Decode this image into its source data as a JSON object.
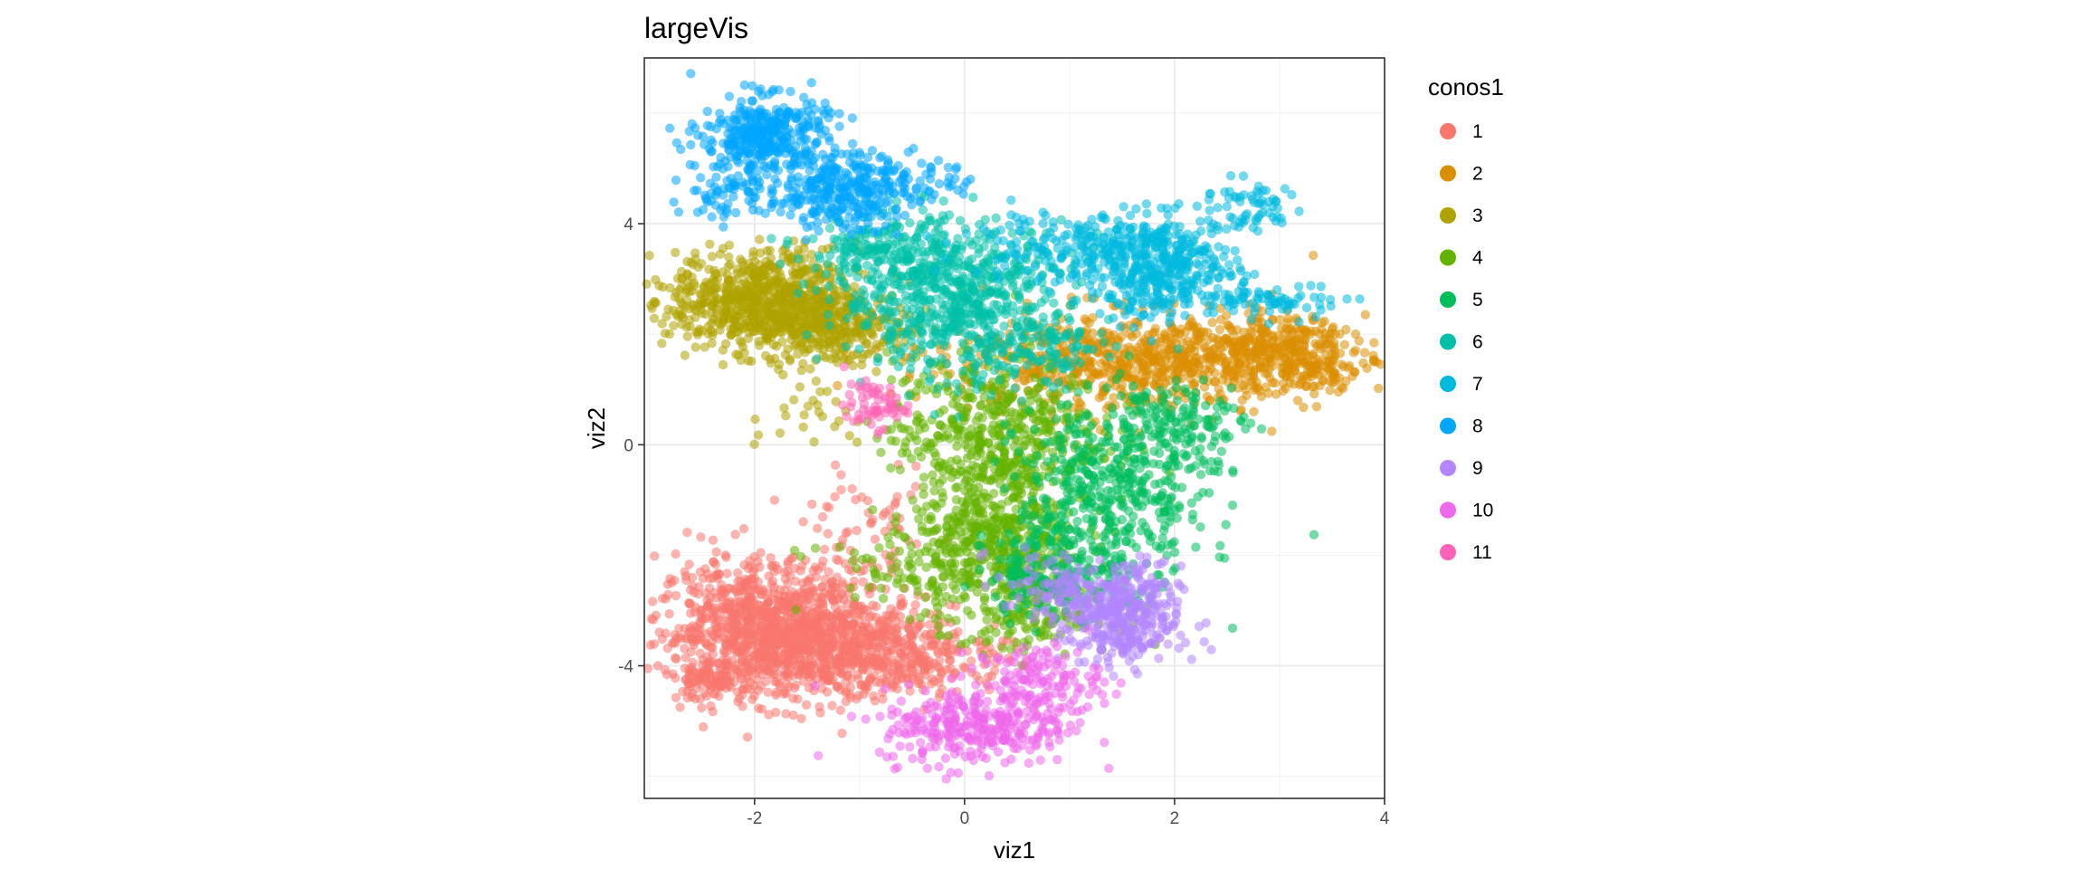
{
  "chart_data": {
    "type": "scatter",
    "title": "largeVis",
    "xlabel": "viz1",
    "ylabel": "viz2",
    "xlim": [
      -3.05,
      4.0
    ],
    "ylim": [
      -6.4,
      7.0
    ],
    "xticks": [
      -2,
      0,
      2,
      4
    ],
    "yticks": [
      -4,
      0,
      4
    ],
    "grid": true,
    "point_opacity": 0.55,
    "legend": {
      "title": "conos1",
      "placement": "right",
      "entries": [
        "1",
        "2",
        "3",
        "4",
        "5",
        "6",
        "7",
        "8",
        "9",
        "10",
        "11"
      ]
    },
    "series": [
      {
        "name": "1",
        "color": "#F8766D",
        "clusters": [
          {
            "cx": -1.9,
            "cy": -3.3,
            "sx": 0.5,
            "sy": 0.6,
            "n": 900
          },
          {
            "cx": -1.2,
            "cy": -3.7,
            "sx": 0.45,
            "sy": 0.45,
            "n": 500
          },
          {
            "cx": -2.45,
            "cy": -4.3,
            "sx": 0.18,
            "sy": 0.15,
            "n": 80
          },
          {
            "cx": -0.3,
            "cy": -3.8,
            "sx": 0.4,
            "sy": 0.35,
            "n": 180
          },
          {
            "cx": -0.9,
            "cy": -1.6,
            "sx": 0.3,
            "sy": 0.5,
            "n": 60
          }
        ]
      },
      {
        "name": "2",
        "color": "#DB8E00",
        "clusters": [
          {
            "cx": 1.6,
            "cy": 1.5,
            "sx": 0.9,
            "sy": 0.45,
            "n": 700
          },
          {
            "cx": 2.9,
            "cy": 1.7,
            "sx": 0.45,
            "sy": 0.3,
            "n": 300
          },
          {
            "cx": 3.4,
            "cy": 1.3,
            "sx": 0.15,
            "sy": 0.15,
            "n": 40
          }
        ]
      },
      {
        "name": "3",
        "color": "#AEA200",
        "clusters": [
          {
            "cx": -1.9,
            "cy": 2.6,
            "sx": 0.45,
            "sy": 0.45,
            "n": 750
          },
          {
            "cx": -1.2,
            "cy": 2.1,
            "sx": 0.35,
            "sy": 0.35,
            "n": 250
          },
          {
            "cx": -1.4,
            "cy": 0.5,
            "sx": 0.3,
            "sy": 0.3,
            "n": 25
          }
        ]
      },
      {
        "name": "4",
        "color": "#64B200",
        "clusters": [
          {
            "cx": 0.3,
            "cy": 0.2,
            "sx": 0.5,
            "sy": 0.7,
            "n": 500
          },
          {
            "cx": 0.3,
            "cy": -1.8,
            "sx": 0.4,
            "sy": 0.7,
            "n": 450
          },
          {
            "cx": 0.7,
            "cy": -3.1,
            "sx": 0.35,
            "sy": 0.3,
            "n": 120
          },
          {
            "cx": -0.4,
            "cy": -2.2,
            "sx": 0.5,
            "sy": 0.4,
            "n": 100
          }
        ]
      },
      {
        "name": "5",
        "color": "#00BD5C",
        "clusters": [
          {
            "cx": 1.4,
            "cy": -0.9,
            "sx": 0.45,
            "sy": 0.8,
            "n": 450
          },
          {
            "cx": 0.9,
            "cy": -2.3,
            "sx": 0.35,
            "sy": 0.4,
            "n": 200
          },
          {
            "cx": 2.0,
            "cy": 0.4,
            "sx": 0.35,
            "sy": 0.4,
            "n": 150
          }
        ]
      },
      {
        "name": "6",
        "color": "#00C1A7",
        "clusters": [
          {
            "cx": -0.1,
            "cy": 2.7,
            "sx": 0.55,
            "sy": 0.65,
            "n": 650
          },
          {
            "cx": -0.8,
            "cy": 3.5,
            "sx": 0.35,
            "sy": 0.3,
            "n": 150
          },
          {
            "cx": 0.6,
            "cy": 1.7,
            "sx": 0.4,
            "sy": 0.4,
            "n": 120
          }
        ]
      },
      {
        "name": "7",
        "color": "#00BADE",
        "clusters": [
          {
            "cx": 1.9,
            "cy": 3.2,
            "sx": 0.35,
            "sy": 0.45,
            "n": 400
          },
          {
            "cx": 1.0,
            "cy": 3.6,
            "sx": 0.5,
            "sy": 0.35,
            "n": 180
          },
          {
            "cx": 2.7,
            "cy": 4.3,
            "sx": 0.25,
            "sy": 0.25,
            "n": 60
          },
          {
            "cx": 3.0,
            "cy": 2.6,
            "sx": 0.3,
            "sy": 0.15,
            "n": 70
          }
        ]
      },
      {
        "name": "8",
        "color": "#00A6FF",
        "clusters": [
          {
            "cx": -1.9,
            "cy": 5.6,
            "sx": 0.3,
            "sy": 0.35,
            "n": 350
          },
          {
            "cx": -1.2,
            "cy": 4.6,
            "sx": 0.35,
            "sy": 0.35,
            "n": 300
          },
          {
            "cx": -2.3,
            "cy": 4.6,
            "sx": 0.2,
            "sy": 0.3,
            "n": 60
          },
          {
            "cx": -0.5,
            "cy": 4.8,
            "sx": 0.3,
            "sy": 0.2,
            "n": 50
          }
        ]
      },
      {
        "name": "9",
        "color": "#B385FF",
        "clusters": [
          {
            "cx": 1.5,
            "cy": -3.1,
            "sx": 0.28,
            "sy": 0.45,
            "n": 400
          },
          {
            "cx": 0.8,
            "cy": -2.5,
            "sx": 0.25,
            "sy": 0.3,
            "n": 60
          }
        ]
      },
      {
        "name": "10",
        "color": "#EF67EB",
        "clusters": [
          {
            "cx": 0.1,
            "cy": -5.1,
            "sx": 0.45,
            "sy": 0.35,
            "n": 300
          },
          {
            "cx": 0.7,
            "cy": -4.3,
            "sx": 0.3,
            "sy": 0.35,
            "n": 150
          }
        ]
      },
      {
        "name": "11",
        "color": "#FF63B6",
        "clusters": [
          {
            "cx": -0.85,
            "cy": 0.7,
            "sx": 0.15,
            "sy": 0.2,
            "n": 60
          }
        ]
      }
    ]
  }
}
